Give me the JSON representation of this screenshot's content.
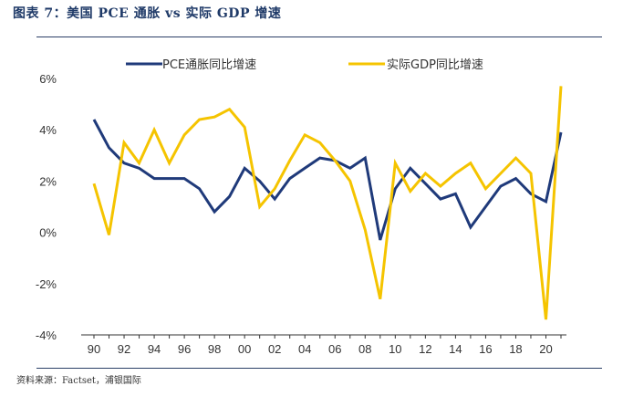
{
  "figure_title": "图表 7：美国 PCE 通胀 vs 实际 GDP 增速",
  "source": "资料来源：Factset，浦银国际",
  "chart_data": {
    "type": "line",
    "title": "",
    "xlabel": "",
    "ylabel": "",
    "x": [
      1990,
      1991,
      1992,
      1993,
      1994,
      1995,
      1996,
      1997,
      1998,
      1999,
      2000,
      2001,
      2002,
      2003,
      2004,
      2005,
      2006,
      2007,
      2008,
      2009,
      2010,
      2011,
      2012,
      2013,
      2014,
      2015,
      2016,
      2017,
      2018,
      2019,
      2020,
      2021
    ],
    "x_tick_labels": [
      "90",
      "92",
      "94",
      "96",
      "98",
      "00",
      "02",
      "04",
      "06",
      "08",
      "10",
      "12",
      "14",
      "16",
      "18",
      "20"
    ],
    "x_tick_years": [
      1990,
      1992,
      1994,
      1996,
      1998,
      2000,
      2002,
      2004,
      2006,
      2008,
      2010,
      2012,
      2014,
      2016,
      2018,
      2020
    ],
    "y_tick_labels": [
      "6%",
      "4%",
      "2%",
      "0%",
      "-2%",
      "-4%"
    ],
    "y_ticks": [
      6,
      4,
      2,
      0,
      -2,
      -4
    ],
    "ylim": [
      -4,
      6
    ],
    "xlim": [
      1990,
      2021
    ],
    "grid": false,
    "legend_position": "top",
    "series": [
      {
        "name": "PCE通胀同比增速",
        "color": "#1f3a7a",
        "values": [
          4.4,
          3.3,
          2.7,
          2.5,
          2.1,
          2.1,
          2.1,
          1.7,
          0.8,
          1.4,
          2.5,
          2.0,
          1.3,
          2.1,
          2.5,
          2.9,
          2.8,
          2.5,
          2.9,
          -0.3,
          1.7,
          2.5,
          1.9,
          1.3,
          1.5,
          0.2,
          1.0,
          1.8,
          2.1,
          1.5,
          1.2,
          3.9
        ]
      },
      {
        "name": "实际GDP同比增速",
        "color": "#f5c400",
        "values": [
          1.9,
          -0.1,
          3.5,
          2.7,
          4.0,
          2.7,
          3.8,
          4.4,
          4.5,
          4.8,
          4.1,
          1.0,
          1.7,
          2.8,
          3.8,
          3.5,
          2.8,
          2.0,
          0.1,
          -2.6,
          2.7,
          1.6,
          2.3,
          1.8,
          2.3,
          2.7,
          1.7,
          2.3,
          2.9,
          2.3,
          -3.4,
          5.7
        ]
      }
    ]
  }
}
